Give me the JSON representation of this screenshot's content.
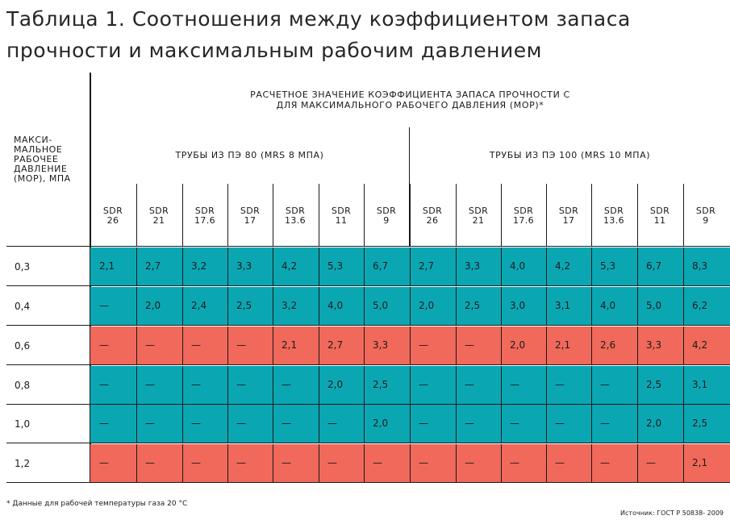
{
  "title": "Таблица 1. Соотношения между коэффициентом запаса прочности и максимальным рабочим давлением",
  "header": {
    "top": "РАСЧЕТНОЕ ЗНАЧЕНИЕ КОЭФФИЦИЕНТА ЗАПАСА ПРОЧНОСТИ С ДЛЯ МАКСИМАЛЬНОГО РАБОЧЕГО ДАВЛЕНИЯ (МОР)*",
    "top_line1": "РАСЧЕТНОЕ ЗНАЧЕНИЕ КОЭФФИЦИЕНТА ЗАПАСА ПРОЧНОСТИ С",
    "top_line2": "ДЛЯ МАКСИМАЛЬНОГО РАБОЧЕГО ДАВЛЕНИЯ (МОР)*",
    "pressure": "МАКСИ-\nМАЛЬНОЕ\nРАБОЧЕЕ\nДАВЛЕНИЕ\n(МОР), МПА",
    "group_pe80": "ТРУБЫ ИЗ ПЭ 80 (MRS 8 МПА)",
    "group_pe100": "ТРУБЫ ИЗ ПЭ 100 (MRS 10 МПА)"
  },
  "sdr_columns": [
    "SDR\n26",
    "SDR\n21",
    "SDR\n17.6",
    "SDR\n17",
    "SDR\n13.6",
    "SDR\n11",
    "SDR\n9",
    "SDR\n26",
    "SDR\n21",
    "SDR\n17.6",
    "SDR\n17",
    "SDR\n13.6",
    "SDR\n11",
    "SDR\n9"
  ],
  "rows": [
    {
      "pressure": "0,3",
      "color": "teal",
      "values": [
        "2,1",
        "2,7",
        "3,2",
        "3,3",
        "4,2",
        "5,3",
        "6,7",
        "2,7",
        "3,3",
        "4,0",
        "4,2",
        "5,3",
        "6,7",
        "8,3"
      ]
    },
    {
      "pressure": "0,4",
      "color": "teal",
      "values": [
        "—",
        "2,0",
        "2,4",
        "2,5",
        "3,2",
        "4,0",
        "5,0",
        "2,0",
        "2,5",
        "3,0",
        "3,1",
        "4,0",
        "5,0",
        "6,2"
      ]
    },
    {
      "pressure": "0,6",
      "color": "coral",
      "values": [
        "—",
        "—",
        "—",
        "—",
        "2,1",
        "2,7",
        "3,3",
        "—",
        "—",
        "2,0",
        "2,1",
        "2,6",
        "3,3",
        "4,2"
      ]
    },
    {
      "pressure": "0,8",
      "color": "teal",
      "values": [
        "—",
        "—",
        "—",
        "—",
        "—",
        "2,0",
        "2,5",
        "—",
        "—",
        "—",
        "—",
        "—",
        "2,5",
        "3,1"
      ]
    },
    {
      "pressure": "1,0",
      "color": "teal",
      "values": [
        "—",
        "—",
        "—",
        "—",
        "—",
        "—",
        "2,0",
        "—",
        "—",
        "—",
        "—",
        "—",
        "2,0",
        "2,5"
      ]
    },
    {
      "pressure": "1,2",
      "color": "coral",
      "values": [
        "—",
        "—",
        "—",
        "—",
        "—",
        "—",
        "—",
        "—",
        "—",
        "—",
        "—",
        "—",
        "—",
        "2,1"
      ]
    }
  ],
  "colors": {
    "teal": "#0aa7b3",
    "coral": "#f0695a"
  },
  "footnote": "* Данные для рабочей температуры газа 20 °С",
  "source": "Источник: ГОСТ Р 50838- 2009"
}
